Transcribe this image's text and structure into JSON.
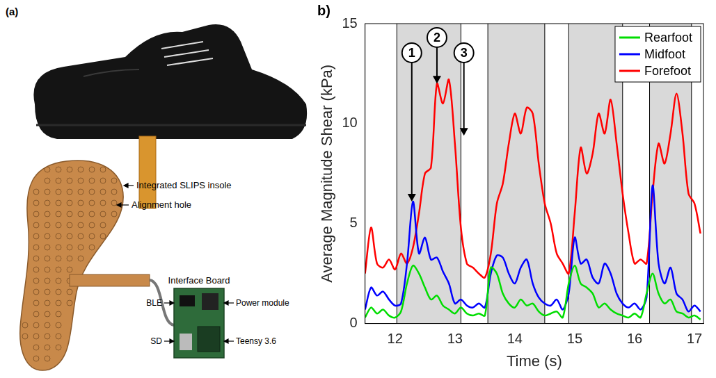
{
  "panel_a": {
    "label": "(a)",
    "insole_label": "Integrated SLIPS insole",
    "hole_label": "Alignment hole",
    "board_title": "Interface Board",
    "board_left_parts": [
      "BLE",
      "SD"
    ],
    "board_right_parts": [
      "Power module",
      "Teensy 3.6"
    ]
  },
  "chart_data": {
    "type": "line",
    "panel_label": "b)",
    "xlabel": "Time (s)",
    "ylabel": "Average Magnitude Shear (kPa)",
    "x": [
      11.5,
      11.6,
      11.7,
      11.8,
      11.9,
      12.0,
      12.1,
      12.2,
      12.3,
      12.4,
      12.5,
      12.6,
      12.7,
      12.8,
      12.9,
      13.0,
      13.1,
      13.2,
      13.3,
      13.4,
      13.5,
      13.6,
      13.7,
      13.8,
      13.9,
      14.0,
      14.1,
      14.2,
      14.3,
      14.4,
      14.5,
      14.6,
      14.7,
      14.8,
      14.9,
      15.0,
      15.1,
      15.2,
      15.3,
      15.4,
      15.5,
      15.6,
      15.7,
      15.8,
      15.9,
      16.0,
      16.1,
      16.2,
      16.3,
      16.4,
      16.5,
      16.6,
      16.7,
      16.8,
      16.9,
      17.0,
      17.1
    ],
    "series": [
      {
        "name": "Rearfoot",
        "color": "#00dd00",
        "values": [
          0.3,
          0.8,
          0.5,
          0.7,
          0.4,
          0.3,
          0.6,
          2.0,
          2.9,
          2.5,
          1.8,
          1.2,
          1.4,
          0.9,
          0.7,
          0.5,
          0.8,
          0.5,
          0.4,
          0.5,
          0.4,
          2.8,
          2.5,
          1.5,
          1.0,
          0.8,
          1.2,
          0.9,
          1.0,
          0.6,
          0.4,
          0.5,
          0.6,
          0.3,
          2.0,
          2.9,
          2.0,
          1.8,
          1.5,
          0.8,
          1.0,
          0.7,
          0.5,
          0.4,
          0.3,
          0.5,
          0.3,
          1.5,
          2.5,
          1.5,
          1.0,
          1.2,
          0.6,
          0.5,
          0.3,
          0.4,
          0.2
        ]
      },
      {
        "name": "Midfoot",
        "color": "#0000ff",
        "values": [
          0.7,
          1.8,
          1.4,
          1.6,
          1.2,
          0.9,
          1.0,
          3.0,
          6.1,
          3.5,
          4.3,
          3.2,
          3.3,
          2.6,
          2.0,
          1.0,
          1.2,
          0.9,
          0.8,
          1.0,
          0.8,
          2.5,
          3.4,
          3.3,
          2.5,
          2.0,
          2.8,
          3.2,
          2.0,
          1.3,
          1.0,
          0.9,
          1.2,
          0.7,
          1.5,
          4.3,
          3.0,
          3.2,
          2.3,
          2.0,
          3.0,
          2.5,
          1.5,
          1.0,
          0.8,
          1.0,
          0.7,
          1.3,
          6.9,
          3.0,
          2.0,
          2.8,
          1.5,
          1.2,
          0.6,
          0.9,
          0.6
        ]
      },
      {
        "name": "Forefoot",
        "color": "#ff0000",
        "values": [
          2.5,
          4.8,
          3.0,
          2.8,
          3.2,
          2.7,
          3.5,
          3.0,
          3.8,
          5.5,
          7.5,
          7.8,
          12.0,
          11.0,
          12.2,
          9.0,
          4.8,
          3.0,
          2.8,
          2.5,
          2.3,
          3.5,
          6.0,
          7.0,
          9.0,
          10.5,
          9.5,
          10.8,
          10.5,
          8.0,
          6.0,
          5.0,
          3.5,
          3.0,
          2.5,
          5.5,
          8.8,
          7.5,
          8.5,
          10.5,
          9.5,
          11.2,
          9.0,
          6.5,
          4.5,
          3.0,
          3.2,
          3.0,
          6.5,
          9.0,
          8.0,
          9.5,
          11.5,
          9.5,
          6.5,
          6.0,
          4.5
        ]
      }
    ],
    "xlim": [
      11.5,
      17.15
    ],
    "ylim": [
      0,
      15
    ],
    "xticks": [
      12,
      13,
      14,
      15,
      16,
      17
    ],
    "yticks": [
      0,
      5,
      10,
      15
    ],
    "grid": false,
    "legend": "top-right",
    "shaded_intervals": [
      [
        12.03,
        13.1
      ],
      [
        13.55,
        14.5
      ],
      [
        14.9,
        15.8
      ],
      [
        16.25,
        16.95
      ]
    ],
    "annotations": [
      {
        "label": "1",
        "x": 12.28,
        "y": 6.1
      },
      {
        "label": "2",
        "x": 12.7,
        "y": 12.0
      },
      {
        "label": "3",
        "x": 13.15,
        "y": 9.4
      }
    ]
  }
}
